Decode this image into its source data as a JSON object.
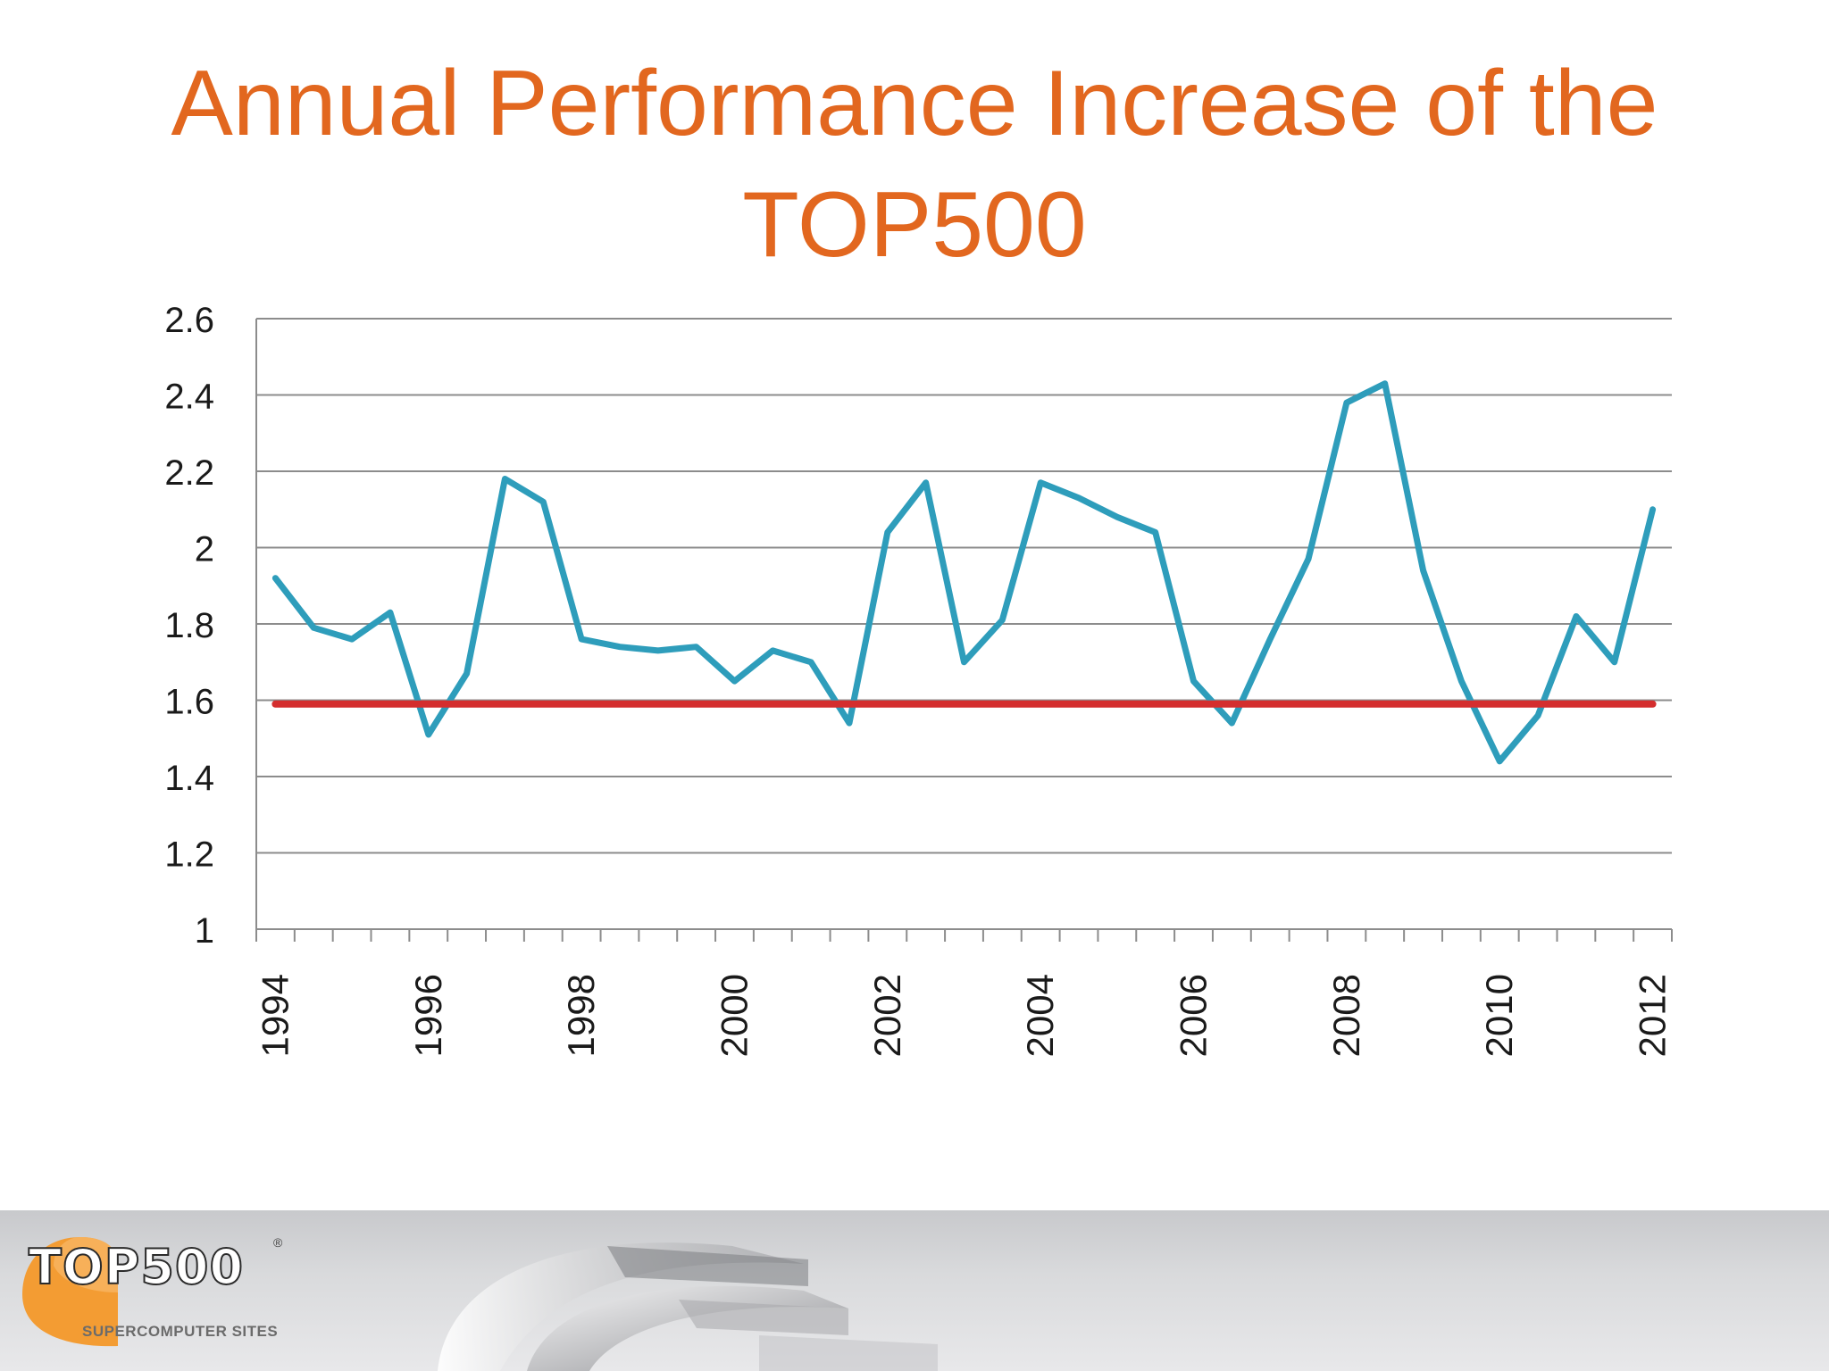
{
  "slide": {
    "title_lines": [
      "Annual Performance Increase of the",
      "TOP500"
    ]
  },
  "logo": {
    "top": "TOP",
    "num": "500",
    "sub": "SUPERCOMPUTER SITES",
    "reg": "®"
  },
  "colors": {
    "title": "#E2671F",
    "series": "#2E9DBB",
    "reference": "#D42E2E",
    "grid": "#8C8C8C"
  },
  "chart_data": {
    "type": "line",
    "title": "",
    "xlabel": "",
    "ylabel": "",
    "ylim": [
      1,
      2.6
    ],
    "yticks": [
      "1",
      "1.2",
      "1.4",
      "1.6",
      "1.8",
      "2",
      "2.2",
      "2.4",
      "2.6"
    ],
    "xlim": [
      1993.75,
      2012.25
    ],
    "xticks": [
      "1994",
      "1996",
      "1998",
      "2000",
      "2002",
      "2004",
      "2006",
      "2008",
      "2010",
      "2012"
    ],
    "grid": true,
    "legend": "none",
    "series": [
      {
        "x": [
          1994.0,
          1994.5,
          1995.0,
          1995.5,
          1996.0,
          1996.5,
          1997.0,
          1997.5,
          1998.0,
          1998.5,
          1999.0,
          1999.5,
          2000.0,
          2000.5,
          2001.0,
          2001.5,
          2002.0,
          2002.5,
          2003.0,
          2003.5,
          2004.0,
          2004.5,
          2005.0,
          2005.5,
          2006.0,
          2006.5,
          2007.0,
          2007.5,
          2008.0,
          2008.5,
          2009.0,
          2009.5,
          2010.0,
          2010.5,
          2011.0,
          2011.5,
          2012.0
        ],
        "values": [
          1.92,
          1.79,
          1.76,
          1.83,
          1.51,
          1.67,
          2.18,
          2.12,
          1.76,
          1.74,
          1.73,
          1.74,
          1.65,
          1.73,
          1.7,
          1.54,
          2.04,
          2.17,
          1.7,
          1.81,
          2.17,
          2.13,
          2.08,
          2.04,
          1.65,
          1.54,
          1.76,
          1.97,
          2.38,
          2.43,
          1.94,
          1.65,
          1.44,
          1.56,
          1.82,
          1.7,
          2.1
        ],
        "color": "#2E9DBB"
      },
      {
        "x": [
          1994.0,
          2012.0
        ],
        "values": [
          1.59,
          1.59
        ],
        "color": "#D42E2E"
      }
    ]
  }
}
